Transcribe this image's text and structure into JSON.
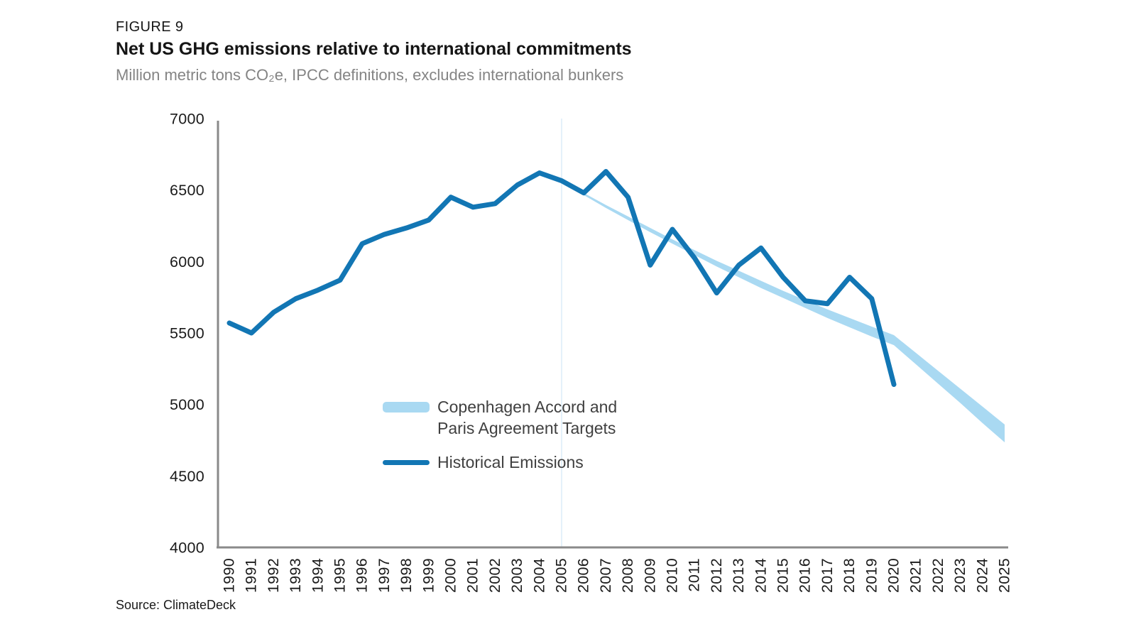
{
  "header": {
    "figure_label": "FIGURE 9",
    "title": "Net US GHG emissions relative to international commitments",
    "subtitle": "Million metric tons CO₂e, IPCC definitions, excludes international bunkers"
  },
  "legend": {
    "targets_label_line1": "Copenhagen Accord and",
    "targets_label_line2": "Paris Agreement Targets",
    "historical_label": "Historical Emissions"
  },
  "footer": {
    "source": "Source: ClimateDeck"
  },
  "colors": {
    "historical_line": "#1276b4",
    "targets_band": "#a9d9f2",
    "axis": "#8a8a8a",
    "tick_label": "#1a1a1a",
    "reference_line": "#e4f1fa",
    "legend_text": "#404040"
  },
  "chart_data": {
    "type": "line",
    "title": "Net US GHG emissions relative to international commitments",
    "units": "Million metric tons CO2e, IPCC definitions, excludes international bunkers",
    "xlabel": "",
    "ylabel": "",
    "ylim": [
      4000,
      7000
    ],
    "xlim": [
      1990,
      2025
    ],
    "grid": false,
    "legend_position": "inside-center",
    "y_ticks": [
      7000,
      6500,
      6000,
      5500,
      5000,
      4500,
      4000
    ],
    "x_ticks": [
      1990,
      1991,
      1992,
      1993,
      1994,
      1995,
      1996,
      1997,
      1998,
      1999,
      2000,
      2001,
      2002,
      2003,
      2004,
      2005,
      2006,
      2007,
      2008,
      2009,
      2010,
      2011,
      2012,
      2013,
      2014,
      2015,
      2016,
      2017,
      2018,
      2019,
      2020,
      2021,
      2022,
      2023,
      2024,
      2025
    ],
    "reference_line_x": 2005,
    "series": [
      {
        "name": "Historical Emissions",
        "style": "line",
        "x": [
          1990,
          1991,
          1992,
          1993,
          1994,
          1995,
          1996,
          1997,
          1998,
          1999,
          2000,
          2001,
          2002,
          2003,
          2004,
          2005,
          2006,
          2007,
          2008,
          2009,
          2010,
          2011,
          2012,
          2013,
          2014,
          2015,
          2016,
          2017,
          2018,
          2019,
          2020
        ],
        "values": [
          5570,
          5500,
          5645,
          5740,
          5800,
          5870,
          6125,
          6190,
          6235,
          6290,
          6450,
          6380,
          6405,
          6535,
          6620,
          6565,
          6480,
          6630,
          6450,
          5975,
          6225,
          6025,
          5780,
          5975,
          6095,
          5890,
          5725,
          5705,
          5890,
          5740,
          5140
        ]
      },
      {
        "name": "Copenhagen Accord and Paris Agreement Targets",
        "style": "band",
        "x": [
          2005,
          2006,
          2007,
          2008,
          2009,
          2010,
          2011,
          2012,
          2013,
          2014,
          2015,
          2016,
          2017,
          2018,
          2019,
          2020,
          2021,
          2022,
          2023,
          2024,
          2025
        ],
        "upper": [
          6570,
          6480,
          6395,
          6315,
          6235,
          6155,
          6080,
          6005,
          5935,
          5865,
          5795,
          5730,
          5665,
          5605,
          5545,
          5485,
          5360,
          5235,
          5110,
          4985,
          4860
        ],
        "lower": [
          6550,
          6465,
          6375,
          6290,
          6205,
          6125,
          6045,
          5965,
          5890,
          5815,
          5745,
          5675,
          5605,
          5540,
          5475,
          5415,
          5280,
          5145,
          5010,
          4870,
          4735
        ]
      }
    ]
  }
}
